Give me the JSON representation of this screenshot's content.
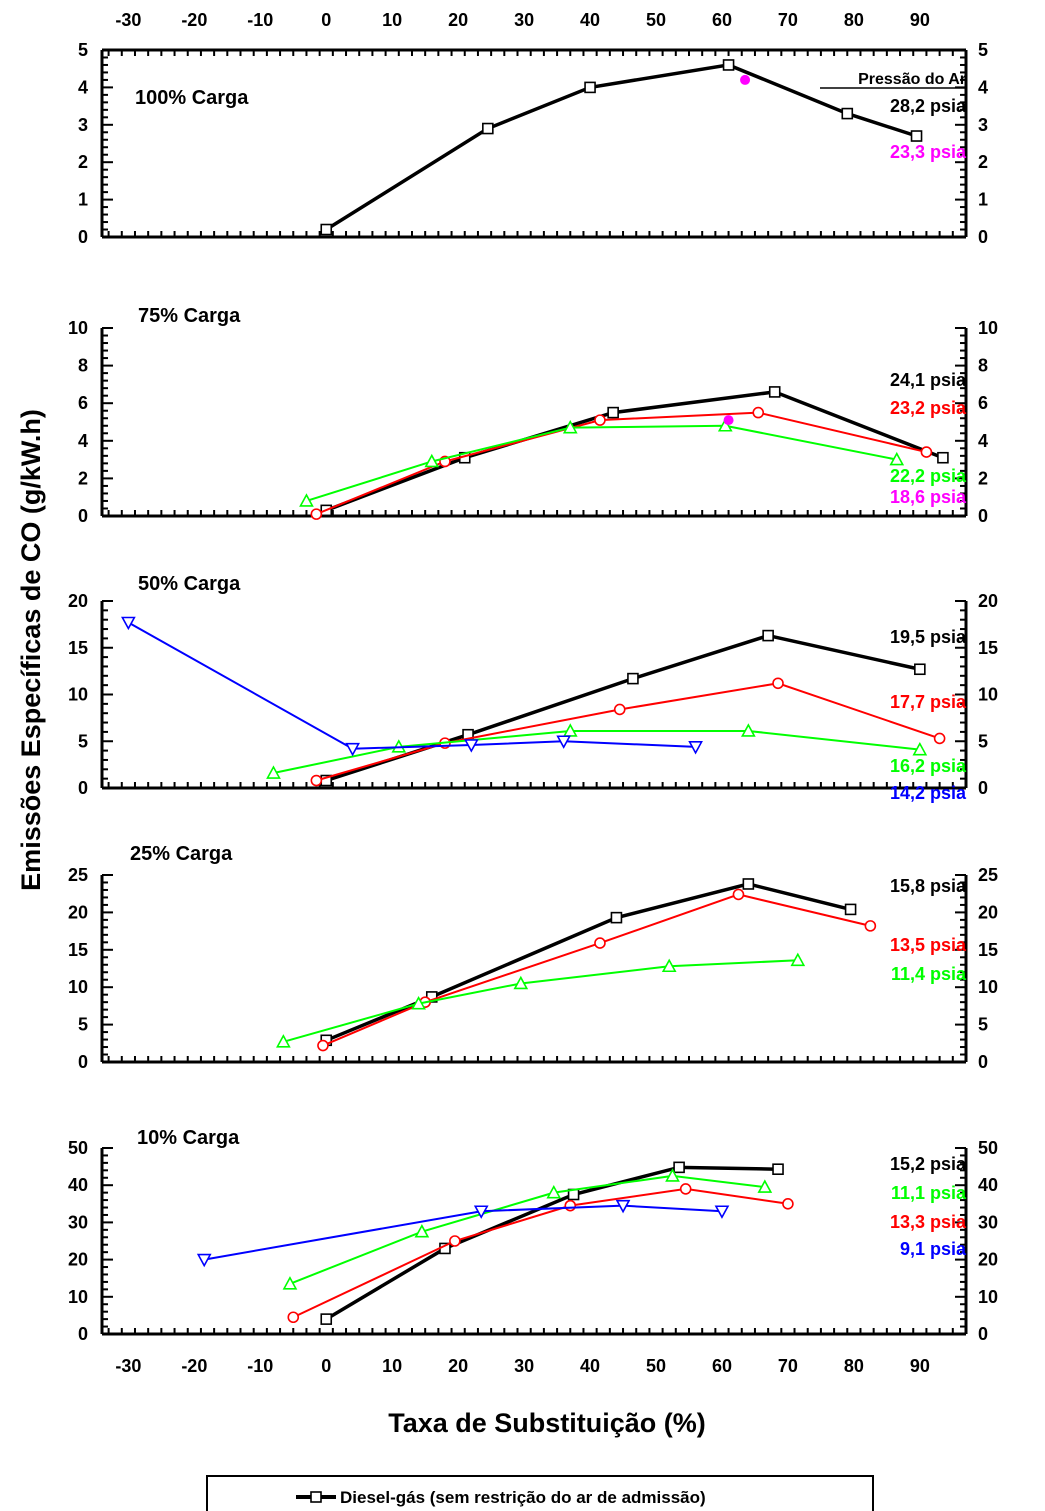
{
  "axis_text": {
    "xlabel": "Taxa de Substituição (%)",
    "ylabel": "Emissões Específicas de CO (g/kW.h)",
    "legend_label": "Diesel-gás (sem restrição do ar de admissão)",
    "pressure_header": "Pressão do Ar"
  },
  "chart_data": [
    {
      "type": "line",
      "title": "100% Carga",
      "xlabel": "Taxa de Substituição (%)",
      "ylabel": "Emissões Específicas de CO (g/kW.h)",
      "xlim": [
        -34,
        97
      ],
      "ylim": [
        0,
        5
      ],
      "x_ticks": [
        -30,
        -20,
        -10,
        0,
        10,
        20,
        30,
        40,
        50,
        60,
        70,
        80,
        90
      ],
      "y_ticks": [
        0,
        1,
        2,
        3,
        4,
        5
      ],
      "series": [
        {
          "name": "28,2 psia",
          "color": "#000000",
          "marker": "square",
          "x": [
            0,
            24.5,
            40,
            61,
            79,
            89.5
          ],
          "y": [
            0.2,
            2.9,
            4.0,
            4.6,
            3.3,
            2.7
          ]
        },
        {
          "name": "23,3 psia",
          "color": "#ff00ff",
          "marker": "dot",
          "x": [
            63.5
          ],
          "y": [
            4.2
          ]
        }
      ]
    },
    {
      "type": "line",
      "title": "75% Carga",
      "xlim": [
        -34,
        97
      ],
      "ylim": [
        0,
        10
      ],
      "x_ticks": [
        -30,
        -20,
        -10,
        0,
        10,
        20,
        30,
        40,
        50,
        60,
        70,
        80,
        90
      ],
      "y_ticks": [
        0,
        2,
        4,
        6,
        8,
        10
      ],
      "series": [
        {
          "name": "24,1 psia",
          "color": "#000000",
          "marker": "square",
          "x": [
            0,
            21,
            43.5,
            68,
            93.5
          ],
          "y": [
            0.3,
            3.1,
            5.5,
            6.6,
            3.1
          ]
        },
        {
          "name": "23,2 psia",
          "color": "#ff0000",
          "marker": "circle",
          "x": [
            -1.5,
            18,
            41.5,
            65.5,
            91
          ],
          "y": [
            0.1,
            2.9,
            5.1,
            5.5,
            3.4
          ]
        },
        {
          "name": "22,2 psia",
          "color": "#00ff00",
          "marker": "triangle-up",
          "x": [
            -3,
            16,
            37,
            60.5,
            86.5
          ],
          "y": [
            0.8,
            2.9,
            4.7,
            4.8,
            3.0
          ]
        },
        {
          "name": "18,6 psia",
          "color": "#ff00ff",
          "marker": "dot",
          "x": [
            61
          ],
          "y": [
            5.1
          ]
        }
      ]
    },
    {
      "type": "line",
      "title": "50% Carga",
      "xlim": [
        -34,
        97
      ],
      "ylim": [
        0,
        20
      ],
      "x_ticks": [
        -30,
        -20,
        -10,
        0,
        10,
        20,
        30,
        40,
        50,
        60,
        70,
        80,
        90
      ],
      "y_ticks": [
        0,
        5,
        10,
        15,
        20
      ],
      "series": [
        {
          "name": "19,5 psia",
          "color": "#000000",
          "marker": "square",
          "x": [
            0,
            21.5,
            46.5,
            67,
            90
          ],
          "y": [
            0.8,
            5.7,
            11.7,
            16.3,
            12.7
          ]
        },
        {
          "name": "17,7 psia",
          "color": "#ff0000",
          "marker": "circle",
          "x": [
            -1.5,
            18,
            44.5,
            68.5,
            93
          ],
          "y": [
            0.8,
            4.8,
            8.4,
            11.2,
            5.3
          ]
        },
        {
          "name": "16,2 psia",
          "color": "#00ff00",
          "marker": "triangle-up",
          "x": [
            -8,
            11,
            37,
            64,
            90
          ],
          "y": [
            1.6,
            4.4,
            6.1,
            6.1,
            4.1
          ]
        },
        {
          "name": "14,2 psia",
          "color": "#0000ff",
          "marker": "triangle-down",
          "x": [
            -30,
            4,
            22,
            36,
            56
          ],
          "y": [
            17.7,
            4.2,
            4.6,
            5.0,
            4.4
          ]
        }
      ]
    },
    {
      "type": "line",
      "title": "25% Carga",
      "xlim": [
        -34,
        97
      ],
      "ylim": [
        0,
        25
      ],
      "x_ticks": [
        -30,
        -20,
        -10,
        0,
        10,
        20,
        30,
        40,
        50,
        60,
        70,
        80,
        90
      ],
      "y_ticks": [
        0,
        5,
        10,
        15,
        20,
        25
      ],
      "series": [
        {
          "name": "15,8 psia",
          "color": "#000000",
          "marker": "square",
          "x": [
            0,
            16,
            44,
            64,
            79.5
          ],
          "y": [
            2.9,
            8.7,
            19.3,
            23.8,
            20.4
          ]
        },
        {
          "name": "13,5 psia",
          "color": "#ff0000",
          "marker": "circle",
          "x": [
            -0.5,
            15,
            41.5,
            62.5,
            82.5
          ],
          "y": [
            2.2,
            8.0,
            15.9,
            22.4,
            18.2
          ]
        },
        {
          "name": "11,4 psia",
          "color": "#00ff00",
          "marker": "triangle-up",
          "x": [
            -6.5,
            14,
            29.5,
            52,
            71.5
          ],
          "y": [
            2.7,
            7.8,
            10.5,
            12.8,
            13.6
          ]
        }
      ]
    },
    {
      "type": "line",
      "title": "10% Carga",
      "xlabel": "Taxa de Substituição (%)",
      "xlim": [
        -34,
        97
      ],
      "ylim": [
        0,
        50
      ],
      "x_ticks": [
        -30,
        -20,
        -10,
        0,
        10,
        20,
        30,
        40,
        50,
        60,
        70,
        80,
        90
      ],
      "y_ticks": [
        0,
        10,
        20,
        30,
        40,
        50
      ],
      "series": [
        {
          "name": "15,2 psia",
          "color": "#000000",
          "marker": "square",
          "x": [
            0,
            18,
            37.5,
            53.5,
            68.5
          ],
          "y": [
            4,
            23,
            37.5,
            44.8,
            44.3
          ]
        },
        {
          "name": "11,1 psia",
          "color": "#00ff00",
          "marker": "triangle-up",
          "x": [
            -5.5,
            14.5,
            34.5,
            52.5,
            66.5
          ],
          "y": [
            13.5,
            27.5,
            38,
            42.5,
            39.5
          ]
        },
        {
          "name": "13,3 psia",
          "color": "#ff0000",
          "marker": "circle",
          "x": [
            -5,
            19.5,
            37,
            54.5,
            70
          ],
          "y": [
            4.5,
            25,
            34.5,
            39,
            35
          ]
        },
        {
          "name": "9,1 psia",
          "color": "#0000ff",
          "marker": "triangle-down",
          "x": [
            -18.5,
            23.5,
            45,
            60
          ],
          "y": [
            20,
            33,
            34.5,
            33
          ]
        }
      ]
    }
  ]
}
